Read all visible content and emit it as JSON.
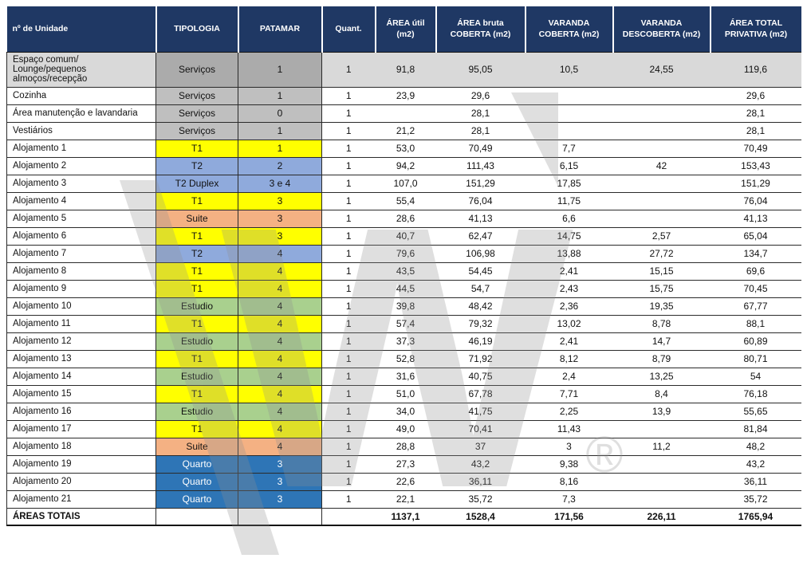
{
  "columns": [
    {
      "label": "nº de Unidade",
      "width": 187
    },
    {
      "label": "TIPOLOGIA",
      "width": 103
    },
    {
      "label": "PATAMAR",
      "width": 105
    },
    {
      "label": "Quant.",
      "width": 67
    },
    {
      "label": "ÁREA útil (m2)",
      "width": 76
    },
    {
      "label": "ÁREA bruta COBERTA (m2)",
      "width": 112
    },
    {
      "label": "VARANDA COBERTA (m2)",
      "width": 110
    },
    {
      "label": "VARANDA DESCOBERTA (m2)",
      "width": 122
    },
    {
      "label": "ÁREA TOTAL PRIVATIVA (m2)",
      "width": 114
    }
  ],
  "colors": {
    "header_bg": "#1f3864",
    "header_fg": "#ffffff",
    "servicos": {
      "bg": "#bfbfbf"
    },
    "servicos-dark": {
      "bg": "#ababab"
    },
    "t1": {
      "bg": "#ffff00"
    },
    "t2": {
      "bg": "#8faadc"
    },
    "suite": {
      "bg": "#f4b183"
    },
    "estudio": {
      "bg": "#a9d08e"
    },
    "quarto": {
      "bg": "#2e75b6",
      "fg": "#ffffff"
    }
  },
  "rows": [
    {
      "unit": "Espaço comum/ Lounge/pequenos almoços/recepção",
      "type": "servicos-dark",
      "tipologia": "Serviços",
      "patamar": "1",
      "quant": "1",
      "area_util": "91,8",
      "area_bruta": "95,05",
      "varanda_coberta": "10,5",
      "varanda_descoberta": "24,55",
      "area_total": "119,6",
      "tall": true,
      "row_bg": "#d9d9d9"
    },
    {
      "unit": "Cozinha",
      "type": "servicos",
      "tipologia": "Serviços",
      "patamar": "1",
      "quant": "1",
      "area_util": "23,9",
      "area_bruta": "29,6",
      "varanda_coberta": "",
      "varanda_descoberta": "",
      "area_total": "29,6"
    },
    {
      "unit": "Área manutenção e lavandaria",
      "type": "servicos",
      "tipologia": "Serviços",
      "patamar": "0",
      "quant": "1",
      "area_util": "",
      "area_bruta": "28,1",
      "varanda_coberta": "",
      "varanda_descoberta": "",
      "area_total": "28,1"
    },
    {
      "unit": "Vestiários",
      "type": "servicos",
      "tipologia": "Serviços",
      "patamar": "1",
      "quant": "1",
      "area_util": "21,2",
      "area_bruta": "28,1",
      "varanda_coberta": "",
      "varanda_descoberta": "",
      "area_total": "28,1"
    },
    {
      "unit": "Alojamento 1",
      "type": "t1",
      "tipologia": "T1",
      "patamar": "1",
      "quant": "1",
      "area_util": "53,0",
      "area_bruta": "70,49",
      "varanda_coberta": "7,7",
      "varanda_descoberta": "",
      "area_total": "70,49"
    },
    {
      "unit": "Alojamento 2",
      "type": "t2",
      "tipologia": "T2",
      "patamar": "2",
      "quant": "1",
      "area_util": "94,2",
      "area_bruta": "111,43",
      "varanda_coberta": "6,15",
      "varanda_descoberta": "42",
      "area_total": "153,43"
    },
    {
      "unit": "Alojamento 3",
      "type": "t2",
      "tipologia": "T2 Duplex",
      "patamar": "3 e 4",
      "quant": "1",
      "area_util": "107,0",
      "area_bruta": "151,29",
      "varanda_coberta": "17,85",
      "varanda_descoberta": "",
      "area_total": "151,29"
    },
    {
      "unit": "Alojamento 4",
      "type": "t1",
      "tipologia": "T1",
      "patamar": "3",
      "quant": "1",
      "area_util": "55,4",
      "area_bruta": "76,04",
      "varanda_coberta": "11,75",
      "varanda_descoberta": "",
      "area_total": "76,04"
    },
    {
      "unit": "Alojamento 5",
      "type": "suite",
      "tipologia": "Suite",
      "patamar": "3",
      "quant": "1",
      "area_util": "28,6",
      "area_bruta": "41,13",
      "varanda_coberta": "6,6",
      "varanda_descoberta": "",
      "area_total": "41,13"
    },
    {
      "unit": "Alojamento 6",
      "type": "t1",
      "tipologia": "T1",
      "patamar": "3",
      "quant": "1",
      "area_util": "40,7",
      "area_bruta": "62,47",
      "varanda_coberta": "14,75",
      "varanda_descoberta": "2,57",
      "area_total": "65,04"
    },
    {
      "unit": "Alojamento 7",
      "type": "t2",
      "tipologia": "T2",
      "patamar": "4",
      "quant": "1",
      "area_util": "79,6",
      "area_bruta": "106,98",
      "varanda_coberta": "13,88",
      "varanda_descoberta": "27,72",
      "area_total": "134,7"
    },
    {
      "unit": "Alojamento 8",
      "type": "t1",
      "tipologia": "T1",
      "patamar": "4",
      "quant": "1",
      "area_util": "43,5",
      "area_bruta": "54,45",
      "varanda_coberta": "2,41",
      "varanda_descoberta": "15,15",
      "area_total": "69,6"
    },
    {
      "unit": "Alojamento 9",
      "type": "t1",
      "tipologia": "T1",
      "patamar": "4",
      "quant": "1",
      "area_util": "44,5",
      "area_bruta": "54,7",
      "varanda_coberta": "2,43",
      "varanda_descoberta": "15,75",
      "area_total": "70,45"
    },
    {
      "unit": "Alojamento 10",
      "type": "estudio",
      "tipologia": "Estudio",
      "patamar": "4",
      "quant": "1",
      "area_util": "39,8",
      "area_bruta": "48,42",
      "varanda_coberta": "2,36",
      "varanda_descoberta": "19,35",
      "area_total": "67,77"
    },
    {
      "unit": "Alojamento 11",
      "type": "t1",
      "tipologia": "T1",
      "patamar": "4",
      "quant": "1",
      "area_util": "57,4",
      "area_bruta": "79,32",
      "varanda_coberta": "13,02",
      "varanda_descoberta": "8,78",
      "area_total": "88,1"
    },
    {
      "unit": "Alojamento 12",
      "type": "estudio",
      "tipologia": "Estudio",
      "patamar": "4",
      "quant": "1",
      "area_util": "37,3",
      "area_bruta": "46,19",
      "varanda_coberta": "2,41",
      "varanda_descoberta": "14,7",
      "area_total": "60,89"
    },
    {
      "unit": "Alojamento 13",
      "type": "t1",
      "tipologia": "T1",
      "patamar": "4",
      "quant": "1",
      "area_util": "52,8",
      "area_bruta": "71,92",
      "varanda_coberta": "8,12",
      "varanda_descoberta": "8,79",
      "area_total": "80,71"
    },
    {
      "unit": "Alojamento 14",
      "type": "estudio",
      "tipologia": "Estudio",
      "patamar": "4",
      "quant": "1",
      "area_util": "31,6",
      "area_bruta": "40,75",
      "varanda_coberta": "2,4",
      "varanda_descoberta": "13,25",
      "area_total": "54"
    },
    {
      "unit": "Alojamento 15",
      "type": "t1",
      "tipologia": "T1",
      "patamar": "4",
      "quant": "1",
      "area_util": "51,0",
      "area_bruta": "67,78",
      "varanda_coberta": "7,71",
      "varanda_descoberta": "8,4",
      "area_total": "76,18"
    },
    {
      "unit": "Alojamento 16",
      "type": "estudio",
      "tipologia": "Estudio",
      "patamar": "4",
      "quant": "1",
      "area_util": "34,0",
      "area_bruta": "41,75",
      "varanda_coberta": "2,25",
      "varanda_descoberta": "13,9",
      "area_total": "55,65"
    },
    {
      "unit": "Alojamento 17",
      "type": "t1",
      "tipologia": "T1",
      "patamar": "4",
      "quant": "1",
      "area_util": "49,0",
      "area_bruta": "70,41",
      "varanda_coberta": "11,43",
      "varanda_descoberta": "",
      "area_total": "81,84"
    },
    {
      "unit": "Alojamento 18",
      "type": "suite",
      "tipologia": "Suite",
      "patamar": "4",
      "quant": "1",
      "area_util": "28,8",
      "area_bruta": "37",
      "varanda_coberta": "3",
      "varanda_descoberta": "11,2",
      "area_total": "48,2"
    },
    {
      "unit": "Alojamento 19",
      "type": "quarto",
      "tipologia": "Quarto",
      "patamar": "3",
      "quant": "1",
      "area_util": "27,3",
      "area_bruta": "43,2",
      "varanda_coberta": "9,38",
      "varanda_descoberta": "",
      "area_total": "43,2"
    },
    {
      "unit": "Alojamento 20",
      "type": "quarto",
      "tipologia": "Quarto",
      "patamar": "3",
      "quant": "1",
      "area_util": "22,6",
      "area_bruta": "36,11",
      "varanda_coberta": "8,16",
      "varanda_descoberta": "",
      "area_total": "36,11"
    },
    {
      "unit": "Alojamento 21",
      "type": "quarto",
      "tipologia": "Quarto",
      "patamar": "3",
      "quant": "1",
      "area_util": "22,1",
      "area_bruta": "35,72",
      "varanda_coberta": "7,3",
      "varanda_descoberta": "",
      "area_total": "35,72"
    }
  ],
  "totals_row": {
    "unit": "ÁREAS TOTAIS",
    "type": "",
    "tipologia": "",
    "patamar": "",
    "quant": "",
    "area_util": "1137,1",
    "area_bruta": "1528,4",
    "varanda_coberta": "171,56",
    "varanda_descoberta": "226,11",
    "area_total": "1765,94",
    "total": true
  },
  "watermark": {
    "letter": "W",
    "registered": "®",
    "color": "#8f8f8f"
  }
}
